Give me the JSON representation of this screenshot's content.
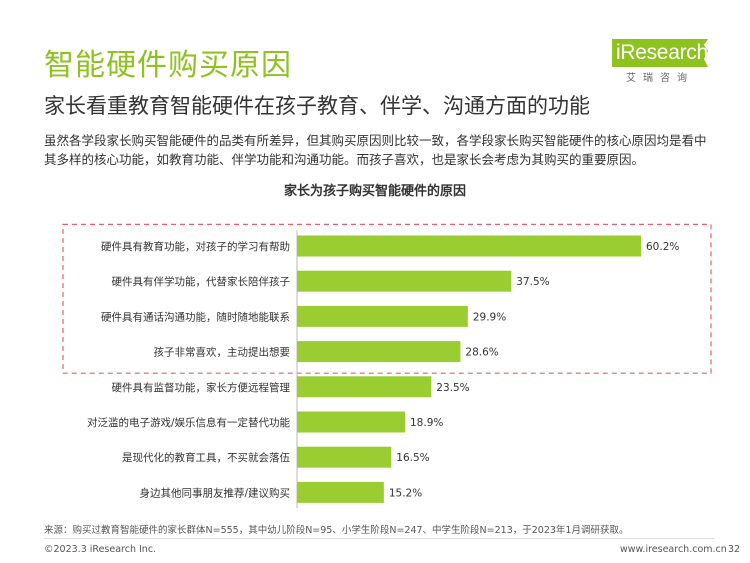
{
  "header": {
    "title": "智能硬件购买原因",
    "subtitle": "家长看重教育智能硬件在孩子教育、伴学、沟通方面的功能"
  },
  "logo": {
    "brand": "iResearch",
    "tagline": "艾瑞咨询",
    "color": "#8dc21f"
  },
  "intro": {
    "line1": "虽然各学段家长购买智能硬件的品类有所差异，但其购买原因则比较一致，各学段家长购买智能硬件的核心原因均是看中",
    "line2": "其多样的核心功能，如教育功能、伴学功能和沟通功能。而孩子喜欢，也是家长会考虑为其购买的重要原因。"
  },
  "chart_data": {
    "type": "bar",
    "orientation": "horizontal",
    "title": "家长为孩子购买智能硬件的原因",
    "categories": [
      "硬件具有教育功能，对孩子的学习有帮助",
      "硬件具有伴学功能，代替家长陪伴孩子",
      "硬件具有通话沟通功能，随时随地能联系",
      "孩子非常喜欢，主动提出想要",
      "硬件具有监督功能，家长方便远程管理",
      "对泛滥的电子游戏/娱乐信息有一定替代功能",
      "是现代化的教育工具，不买就会落伍",
      "身边其他同事朋友推荐/建议购买"
    ],
    "values": [
      60.2,
      37.5,
      29.9,
      28.6,
      23.5,
      18.9,
      16.5,
      15.2
    ],
    "value_labels": [
      "60.2%",
      "37.5%",
      "29.9%",
      "28.6%",
      "23.5%",
      "18.9%",
      "16.5%",
      "15.2%"
    ],
    "unit": "%",
    "xlim": [
      0,
      60.2
    ],
    "highlighted_count": 4,
    "bar_color": "#9acd32",
    "highlight_border_color": "#e8606c",
    "grid": false
  },
  "footer": {
    "source": "来源：购买过教育智能硬件的家长群体N=555，其中幼儿阶段N=95、小学生阶段N=247、中学生阶段N=213，于2023年1月调研获取。",
    "copyright": "©2023.3 iResearch Inc.",
    "site": "www.iresearch.com.cn",
    "page": "32"
  }
}
